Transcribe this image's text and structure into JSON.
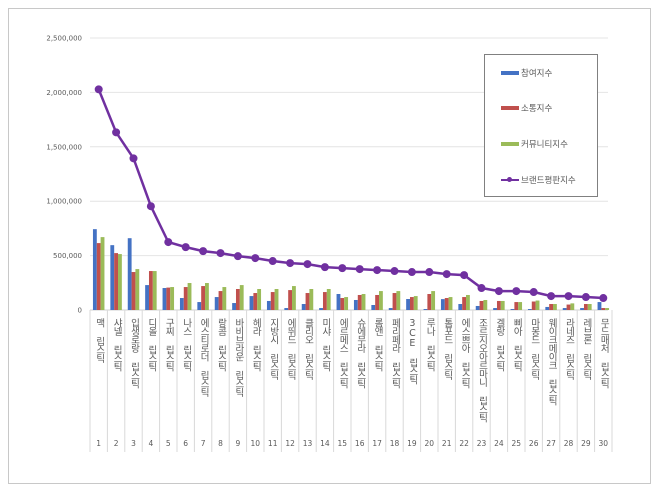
{
  "chart_data": {
    "type": "bar",
    "categories": [
      "맥 립스틱",
      "샤넬 립스틱",
      "입생로랑 립스틱",
      "디올 립스틱",
      "구찌 립스틱",
      "나스 립스틱",
      "에스티로더 립스틱",
      "랑콤 립스틱",
      "바비브라운 립스틱",
      "헤라 립스틱",
      "지방시 립스틱",
      "에뛰드 립스틱",
      "클리오 립스틱",
      "미샤 립스틱",
      "에르메스 립스틱",
      "슈에무라 립스틱",
      "롬앤 립스틱",
      "페리페라 립스틱",
      "3CE 립스틱",
      "루나 립스틱",
      "톰포드 립스틱",
      "에스쁘아 립스틱",
      "조르지오아르마니 립스틱",
      "겔랑 립스틱",
      "삐아 립스틱",
      "마몽드 립스틱",
      "웨이크메이크 립스틱",
      "라네즈 립스틱",
      "레브론 립스틱",
      "무드매처 립스틱"
    ],
    "category_numbers": [
      "1",
      "2",
      "3",
      "4",
      "5",
      "6",
      "7",
      "8",
      "9",
      "10",
      "11",
      "12",
      "13",
      "14",
      "15",
      "16",
      "17",
      "18",
      "19",
      "20",
      "21",
      "22",
      "23",
      "24",
      "25",
      "26",
      "27",
      "28",
      "29",
      "30"
    ],
    "series": [
      {
        "name": "참여지수",
        "kind": "bar",
        "color": "#4472c4",
        "values": [
          743000,
          596000,
          660000,
          229000,
          202000,
          110000,
          73000,
          119000,
          64000,
          128000,
          83000,
          18000,
          55000,
          18000,
          147000,
          92000,
          46000,
          18000,
          101000,
          9000,
          100000,
          55000,
          37000,
          18000,
          9000,
          9000,
          28000,
          18000,
          18000,
          73000
        ]
      },
      {
        "name": "소통지수",
        "kind": "bar",
        "color": "#c0504d",
        "values": [
          615000,
          523000,
          349000,
          358000,
          206000,
          211000,
          220000,
          174000,
          193000,
          156000,
          165000,
          183000,
          156000,
          165000,
          110000,
          138000,
          138000,
          156000,
          119000,
          147000,
          110000,
          119000,
          83000,
          83000,
          73000,
          78000,
          55000,
          50000,
          55000,
          18000
        ]
      },
      {
        "name": "커뮤니티지수",
        "kind": "bar",
        "color": "#9bbb59",
        "values": [
          670000,
          514000,
          376000,
          358000,
          211000,
          248000,
          248000,
          211000,
          229000,
          193000,
          193000,
          220000,
          193000,
          193000,
          119000,
          147000,
          174000,
          174000,
          128000,
          174000,
          119000,
          138000,
          92000,
          83000,
          73000,
          87000,
          55000,
          61000,
          55000,
          18000
        ]
      },
      {
        "name": "브랜드평판지수",
        "kind": "line",
        "color": "#7030a0",
        "values": [
          2028000,
          1633000,
          1394000,
          954000,
          624000,
          578000,
          541000,
          523000,
          495000,
          477000,
          450000,
          431000,
          422000,
          394000,
          385000,
          376000,
          367000,
          358000,
          349000,
          349000,
          330000,
          321000,
          202000,
          174000,
          174000,
          165000,
          128000,
          128000,
          119000,
          110000
        ]
      }
    ],
    "yticks": [
      "0",
      "500,000",
      "1,000,000",
      "1,500,000",
      "2,000,000",
      "2,500,000"
    ],
    "ylim": [
      0,
      2500000
    ],
    "grid": true,
    "legend_position": "top-right"
  }
}
